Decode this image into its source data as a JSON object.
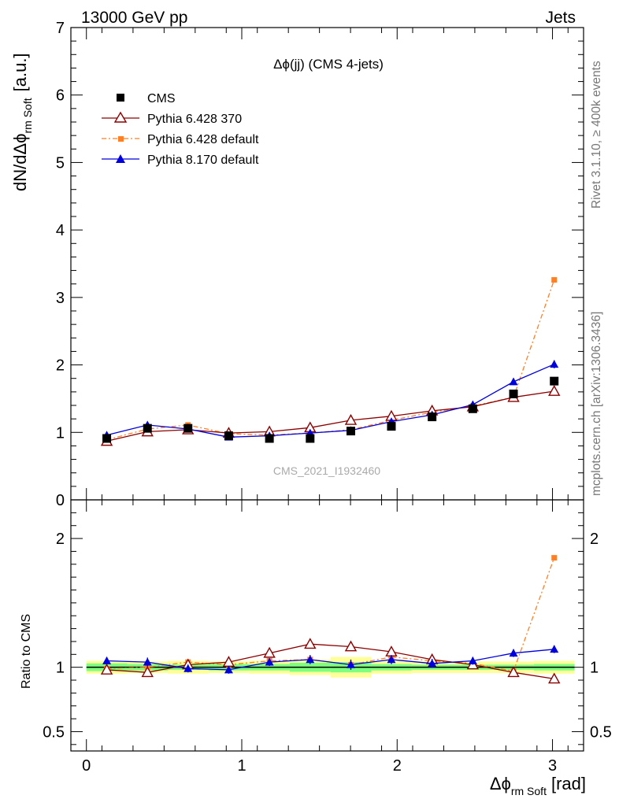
{
  "header": {
    "left": "13000 GeV pp",
    "right": "Jets"
  },
  "side_text": {
    "top": "Rivet 3.1.10, ≥ 400k events",
    "bottom": "mcplots.cern.ch [arXiv:1306.3436]"
  },
  "plot_title": "Δϕ(jj) (CMS 4-jets)",
  "watermark": "CMS_2021_I1932460",
  "ylabel_main": {
    "base": "dN/dΔϕ",
    "sub": "rm Soft",
    "unit": "[a.u.]"
  },
  "ylabel_ratio": "Ratio to CMS",
  "xlabel": {
    "base": "Δϕ",
    "sub": "rm Soft",
    "unit": "[rad]"
  },
  "colors": {
    "data": "#000000",
    "p6_370": "#8b0000",
    "p6_def": "#ff7f24",
    "p8": "#0000dd",
    "band_inner": "#7fff7f",
    "band_outer": "#ffff99"
  },
  "chart_data": {
    "type": "line",
    "x_range": [
      -0.1,
      3.2
    ],
    "x_ticks": [
      "0",
      "1",
      "2",
      "3"
    ],
    "main": {
      "ylim": [
        0,
        7
      ],
      "y_ticks": [
        "0",
        "1",
        "2",
        "3",
        "4",
        "5",
        "6",
        "7"
      ]
    },
    "ratio": {
      "ylim": [
        0.35,
        2.3
      ],
      "y_ticks": [
        "0.5",
        "1",
        "2"
      ]
    },
    "legend": {
      "placement": "top-left",
      "entries": [
        "CMS",
        "Pythia 6.428 370",
        "Pythia 6.428 default",
        "Pythia 8.170 default"
      ]
    },
    "x": [
      0.131,
      0.393,
      0.654,
      0.916,
      1.178,
      1.44,
      1.702,
      1.963,
      2.225,
      2.487,
      2.749,
      3.011
    ],
    "bin_edges": [
      0.0,
      0.262,
      0.524,
      0.785,
      1.047,
      1.309,
      1.571,
      1.833,
      2.094,
      2.356,
      2.618,
      2.88,
      3.142
    ],
    "series": [
      {
        "name": "CMS",
        "key": "data",
        "values": [
          0.91,
          1.06,
          1.06,
          0.95,
          0.91,
          0.91,
          1.02,
          1.09,
          1.23,
          1.35,
          1.57,
          1.76
        ]
      },
      {
        "name": "Pythia 6.428 370",
        "key": "p6_370",
        "values": [
          0.87,
          1.01,
          1.04,
          0.99,
          1.01,
          1.07,
          1.18,
          1.24,
          1.32,
          1.38,
          1.52,
          1.61
        ]
      },
      {
        "name": "Pythia 6.428 default",
        "key": "p6_def",
        "values": [
          0.89,
          1.05,
          1.11,
          0.98,
          0.96,
          0.99,
          1.04,
          1.18,
          1.3,
          1.39,
          1.52,
          3.26
        ]
      },
      {
        "name": "Pythia 8.170 default",
        "key": "p8",
        "values": [
          0.96,
          1.11,
          1.05,
          0.93,
          0.95,
          0.99,
          1.03,
          1.16,
          1.26,
          1.41,
          1.75,
          2.01
        ],
        "errors": [
          0.03,
          0.04,
          0.03,
          0.03,
          0.03,
          0.04,
          0.04,
          0.04,
          0.04,
          0.04,
          0.05,
          0.06
        ]
      }
    ],
    "ratio_series": [
      {
        "key": "p6_370",
        "values": [
          0.98,
          0.96,
          1.02,
          1.04,
          1.11,
          1.18,
          1.16,
          1.12,
          1.06,
          1.02,
          0.96,
          0.91
        ]
      },
      {
        "key": "p6_def",
        "values": [
          0.99,
          1.0,
          1.04,
          1.02,
          1.05,
          1.06,
          1.02,
          1.08,
          1.05,
          1.03,
          0.97,
          1.85
        ]
      },
      {
        "key": "p8",
        "values": [
          1.05,
          1.04,
          0.99,
          0.98,
          1.04,
          1.06,
          1.02,
          1.06,
          1.03,
          1.05,
          1.11,
          1.14
        ],
        "errors": [
          0.03,
          0.035,
          0.03,
          0.03,
          0.03,
          0.035,
          0.04,
          0.035,
          0.035,
          0.03,
          0.03,
          0.03
        ]
      }
    ],
    "ratio_bands": {
      "inner": [
        0.03,
        0.025,
        0.02,
        0.025,
        0.025,
        0.035,
        0.04,
        0.025,
        0.02,
        0.02,
        0.02,
        0.025
      ],
      "outer": [
        0.05,
        0.045,
        0.05,
        0.045,
        0.05,
        0.06,
        0.08,
        0.05,
        0.045,
        0.045,
        0.045,
        0.05
      ]
    }
  }
}
